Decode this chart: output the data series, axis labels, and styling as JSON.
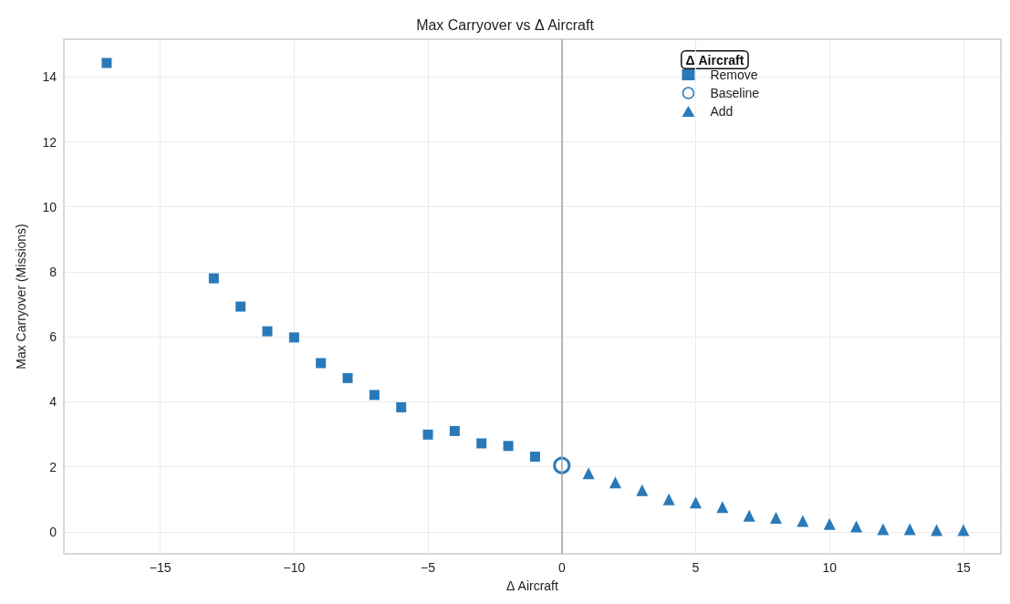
{
  "chart_data": {
    "type": "scatter",
    "title": "Max Carryover vs Δ Aircraft",
    "xlabel": "Δ Aircraft",
    "ylabel": "Max Carryover (Missions)",
    "legend_title": "Δ Aircraft",
    "xlim": [
      -18.6,
      16.4
    ],
    "xticks": [
      {
        "value": -15,
        "label": "−15"
      },
      {
        "value": -10,
        "label": "−10"
      },
      {
        "value": -5,
        "label": "−5"
      },
      0,
      5,
      10,
      15
    ],
    "ylim": [
      -0.68,
      15.16
    ],
    "yticks": [
      0,
      2,
      4,
      6,
      8,
      10,
      12,
      14
    ],
    "grid": true,
    "legend": "top right",
    "ref_lines": [
      {
        "axis": "x",
        "value": 0,
        "label": null,
        "color": "#a0a0a0"
      }
    ],
    "series": [
      {
        "name": "Remove",
        "color": "#2a7ab9",
        "marker": "square",
        "x": [
          -17,
          -13,
          -12,
          -11,
          -10,
          -9,
          -8,
          -7,
          -6,
          -5,
          -4,
          -3,
          -2,
          -1
        ],
        "values": [
          14.43,
          7.8,
          6.93,
          6.17,
          5.98,
          5.19,
          4.73,
          4.21,
          3.83,
          2.99,
          3.1,
          2.72,
          2.64,
          2.31
        ]
      },
      {
        "name": "Baseline",
        "color": "#2a7ab9",
        "marker": "circle",
        "x": [
          0
        ],
        "values": [
          2.04
        ]
      },
      {
        "name": "Add",
        "color": "#2a7ab9",
        "marker": "triangle",
        "x": [
          1,
          2,
          3,
          4,
          5,
          6,
          7,
          8,
          9,
          10,
          11,
          12,
          13,
          14,
          15
        ],
        "values": [
          1.8,
          1.52,
          1.28,
          1.0,
          0.9,
          0.76,
          0.49,
          0.43,
          0.33,
          0.24,
          0.16,
          0.08,
          0.08,
          0.05,
          0.05
        ]
      }
    ]
  }
}
